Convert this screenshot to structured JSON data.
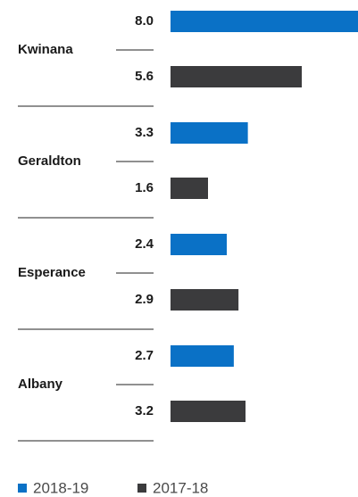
{
  "chart_data": {
    "type": "bar",
    "orientation": "horizontal",
    "categories": [
      "Kwinana",
      "Geraldton",
      "Esperance",
      "Albany"
    ],
    "series": [
      {
        "name": "2018-19",
        "color": "#0a71c6",
        "values": [
          8.0,
          3.3,
          2.4,
          2.7
        ],
        "value_labels": [
          "8.0",
          "3.3",
          "2.4",
          "2.7"
        ]
      },
      {
        "name": "2017-18",
        "color": "#3b3b3d",
        "values": [
          5.6,
          1.6,
          2.9,
          3.2
        ],
        "value_labels": [
          "5.6",
          "1.6",
          "2.9",
          "3.2"
        ]
      }
    ],
    "legend": "bottom-left"
  }
}
